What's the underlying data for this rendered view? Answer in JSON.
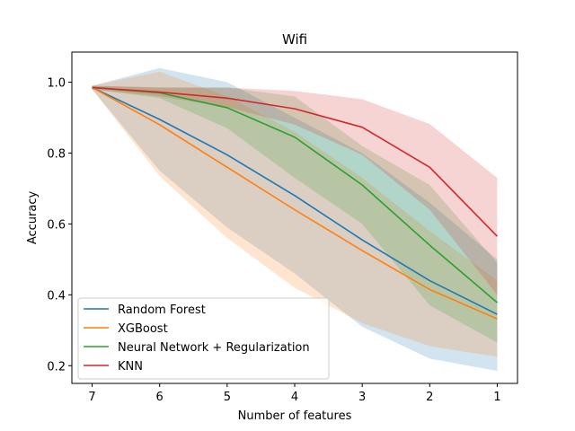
{
  "chart_data": {
    "type": "line",
    "title": "Wifi",
    "xlabel": "Number of features",
    "ylabel": "Accuracy",
    "x": [
      7,
      6,
      5,
      4,
      3,
      2,
      1
    ],
    "x_ticks": [
      "7",
      "6",
      "5",
      "4",
      "3",
      "2",
      "1"
    ],
    "x_inverted": true,
    "xlim": [
      7.3,
      0.7
    ],
    "ylim": [
      0.15,
      1.085
    ],
    "y_ticks": [
      0.2,
      0.4,
      0.6,
      0.8,
      1.0
    ],
    "y_tick_labels": [
      "0.2",
      "0.4",
      "0.6",
      "0.8",
      "1.0"
    ],
    "grid": false,
    "legend_position": "lower-left",
    "series": [
      {
        "name": "Random Forest",
        "color": "#1f77b4",
        "values": [
          0.985,
          0.895,
          0.795,
          0.68,
          0.555,
          0.44,
          0.345
        ],
        "band_lower": [
          0.98,
          0.75,
          0.59,
          0.46,
          0.31,
          0.22,
          0.185
        ],
        "band_upper": [
          0.99,
          1.04,
          1.0,
          0.9,
          0.8,
          0.66,
          0.5
        ]
      },
      {
        "name": "XGBoost",
        "color": "#ff7f0e",
        "values": [
          0.985,
          0.88,
          0.76,
          0.64,
          0.525,
          0.415,
          0.332
        ],
        "band_lower": [
          0.98,
          0.735,
          0.56,
          0.42,
          0.32,
          0.255,
          0.225
        ],
        "band_upper": [
          0.99,
          1.03,
          0.96,
          0.86,
          0.73,
          0.58,
          0.44
        ]
      },
      {
        "name": "Neural Network + Regularization",
        "color": "#2ca02c",
        "values": [
          0.985,
          0.97,
          0.928,
          0.845,
          0.71,
          0.54,
          0.378
        ],
        "band_lower": [
          0.98,
          0.955,
          0.87,
          0.73,
          0.6,
          0.37,
          0.265
        ],
        "band_upper": [
          0.99,
          0.985,
          0.985,
          0.96,
          0.82,
          0.71,
          0.49
        ]
      },
      {
        "name": "KNN",
        "color": "#d62728",
        "values": [
          0.985,
          0.972,
          0.955,
          0.925,
          0.873,
          0.76,
          0.565
        ],
        "band_lower": [
          0.98,
          0.96,
          0.93,
          0.88,
          0.795,
          0.64,
          0.4
        ],
        "band_upper": [
          0.99,
          0.985,
          0.985,
          0.975,
          0.952,
          0.882,
          0.73
        ]
      }
    ]
  }
}
